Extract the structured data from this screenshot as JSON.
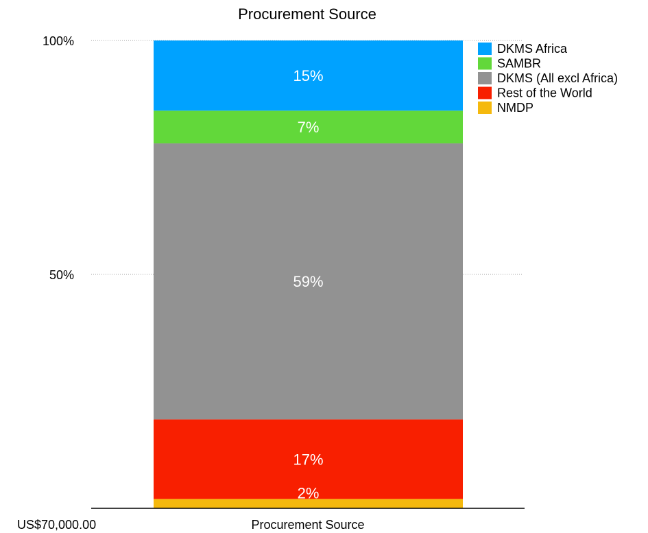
{
  "chart_data": {
    "type": "bar",
    "stacked": true,
    "percent_stacked": true,
    "title": "Procurement Source",
    "categories": [
      "Procurement Source"
    ],
    "y_ticks": [
      "100%",
      "50%"
    ],
    "ylim": [
      0,
      100
    ],
    "bottom_label": "US$70,000.00",
    "grid": true,
    "legend_position": "top-right",
    "series": [
      {
        "name": "NMDP",
        "values": [
          2
        ],
        "label": "2%",
        "color": "#F5B90E"
      },
      {
        "name": "Rest of the World",
        "values": [
          17
        ],
        "label": "17%",
        "color": "#F81F00"
      },
      {
        "name": "DKMS (All excl Africa)",
        "values": [
          59
        ],
        "label": "59%",
        "color": "#929292"
      },
      {
        "name": "SAMBR",
        "values": [
          7
        ],
        "label": "7%",
        "color": "#62D83A"
      },
      {
        "name": "DKMS Africa",
        "values": [
          15
        ],
        "label": "15%",
        "color": "#00A2FF"
      }
    ],
    "legend_order": [
      "DKMS Africa",
      "SAMBR",
      "DKMS (All excl Africa)",
      "Rest of the World",
      "NMDP"
    ]
  }
}
